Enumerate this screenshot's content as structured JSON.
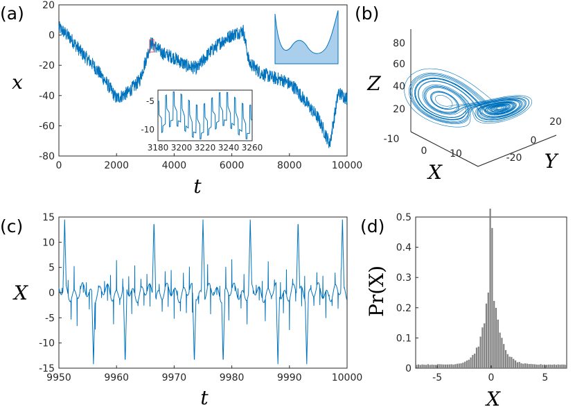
{
  "colors": {
    "line": "#0072BD",
    "hist": "#808080",
    "fill": "#a9cfec"
  },
  "chart_data": [
    {
      "id": "a",
      "panel_label": "(a)",
      "type": "line",
      "xlabel": "t",
      "ylabel": "x",
      "xlim": [
        0,
        10000
      ],
      "ylim": [
        -80,
        20
      ],
      "xticks": [
        "0",
        "2000",
        "4000",
        "6000",
        "8000",
        "10000"
      ],
      "yticks": [
        "-80",
        "-60",
        "-40",
        "-20",
        "0",
        "20"
      ],
      "series": [
        {
          "x": [
            0,
            400,
            800,
            1200,
            1600,
            2000,
            2400,
            2800,
            3200,
            3600,
            4000,
            4400,
            4800,
            5200,
            5600,
            6000,
            6400,
            6600,
            7000,
            7400,
            7800,
            8200,
            8600,
            9000,
            9400,
            9700,
            10000
          ],
          "y": [
            5,
            -2,
            -12,
            -20,
            -30,
            -42,
            -38,
            -30,
            -5,
            -12,
            -15,
            -20,
            -22,
            -12,
            -5,
            0,
            3,
            -18,
            -25,
            -28,
            -30,
            -35,
            -45,
            -55,
            -72,
            -38,
            -42
          ]
        }
      ],
      "inset_zoom": {
        "xticks": [
          "3180",
          "3200",
          "3220",
          "3240",
          "3260"
        ],
        "yticks": [
          "-5",
          "-10"
        ],
        "xlim": [
          3180,
          3260
        ],
        "ylim": [
          -12,
          -3
        ]
      },
      "inset_potential": {
        "type": "area",
        "description_shape": "double-well"
      }
    },
    {
      "id": "b",
      "panel_label": "(b)",
      "type": "line",
      "xlabel": "X",
      "ylabel": "Z",
      "zlabel": "Y",
      "zticks_left": [
        "20",
        "40",
        "60",
        "80"
      ],
      "xticks_3d": [
        "-10",
        "0",
        "10"
      ],
      "yticks_3d": [
        "-20",
        "0",
        "20"
      ]
    },
    {
      "id": "c",
      "panel_label": "(c)",
      "type": "line",
      "xlabel": "t",
      "ylabel": "X",
      "xlim": [
        9950,
        10000
      ],
      "ylim": [
        -15,
        15
      ],
      "xticks": [
        "9950",
        "9960",
        "9970",
        "9980",
        "9990",
        "10000"
      ],
      "yticks": [
        "-15",
        "-10",
        "-5",
        "0",
        "5",
        "10",
        "15"
      ],
      "spikes_up": [
        9951.0,
        9966.5,
        9975.0,
        9983.2,
        9991.5,
        9999.2
      ],
      "spikes_down": [
        9956.0,
        9961.5,
        9973.5,
        9978.5,
        9988.0,
        9993.0
      ]
    },
    {
      "id": "d",
      "panel_label": "(d)",
      "type": "bar",
      "xlabel": "X",
      "ylabel": "Pr(X)",
      "xlim": [
        -7,
        7
      ],
      "ylim": [
        0,
        0.5
      ],
      "xticks": [
        "-5",
        "0",
        "5"
      ],
      "yticks": [
        "0",
        "0.1",
        "0.2",
        "0.3",
        "0.4",
        "0.5"
      ]
    }
  ]
}
